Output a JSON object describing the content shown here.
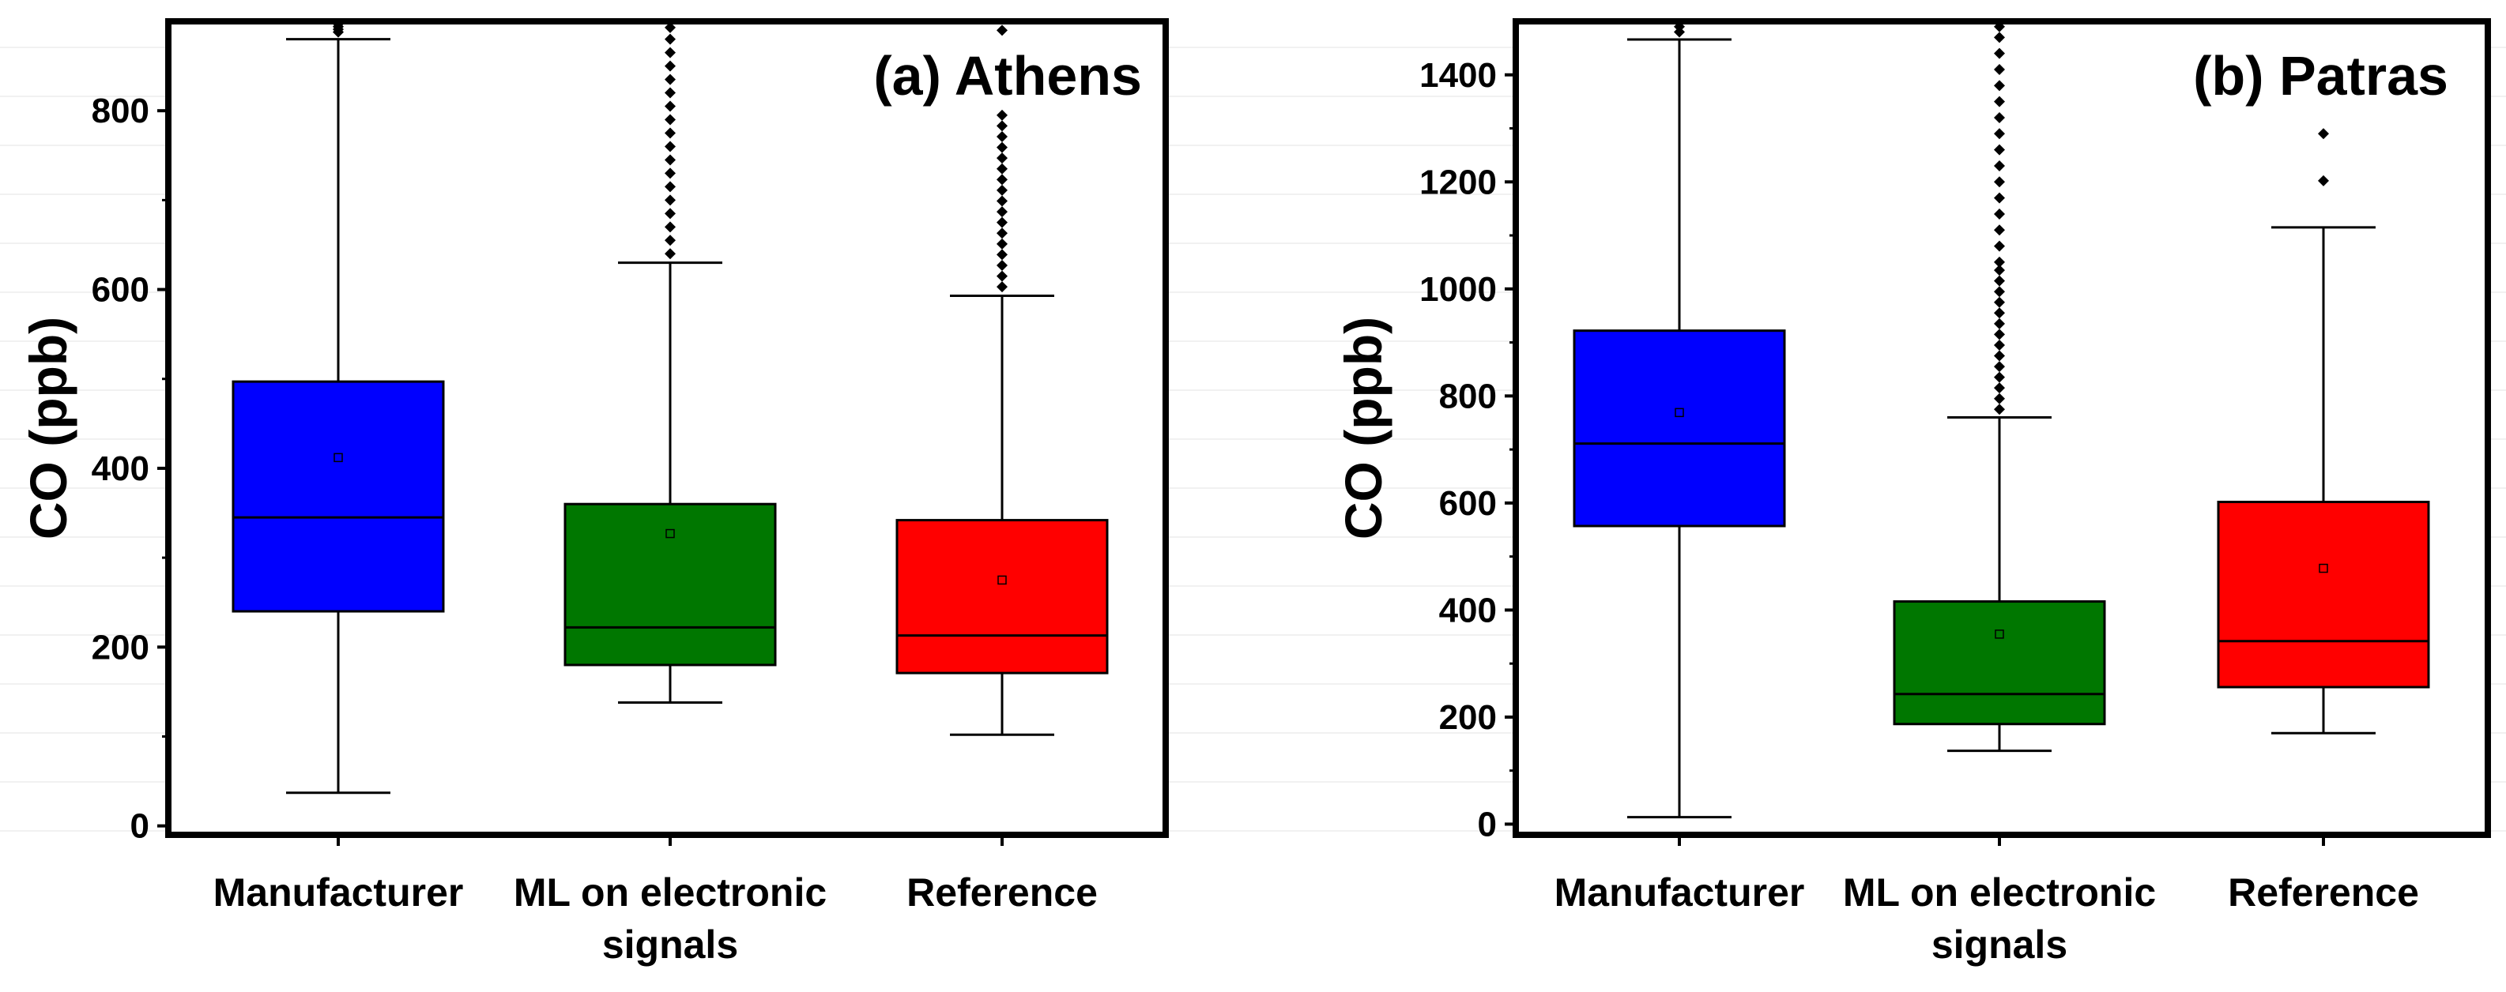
{
  "chart_data": [
    {
      "type": "box",
      "title": "(a) Athens",
      "xlabel": "",
      "ylabel": "CO (ppb)",
      "ylim": [
        -10,
        900
      ],
      "yticks": [
        0,
        200,
        400,
        600,
        800
      ],
      "categories": [
        "Manufacturer",
        "ML on electronic|signals",
        "Reference"
      ],
      "boxes": [
        {
          "name": "Manufacturer",
          "color": "#0000ff",
          "whisker_low": 37,
          "q1": 240,
          "median": 345,
          "q3": 497,
          "whisker_high": 880,
          "mean": 412,
          "outliers": [
            888,
            891,
            894,
            897
          ]
        },
        {
          "name": "ML on electronic signals",
          "color": "#007700",
          "whisker_low": 138,
          "q1": 180,
          "median": 222,
          "q3": 360,
          "whisker_high": 630,
          "mean": 327,
          "outliers": [
            640,
            655,
            670,
            685,
            700,
            715,
            730,
            745,
            760,
            775,
            790,
            805,
            820,
            835,
            850,
            865,
            880,
            893
          ]
        },
        {
          "name": "Reference",
          "color": "#ff0000",
          "whisker_low": 102,
          "q1": 171,
          "median": 213,
          "q3": 342,
          "whisker_high": 593,
          "mean": 275,
          "outliers": [
            603,
            615,
            627,
            639,
            651,
            663,
            675,
            687,
            699,
            711,
            723,
            735,
            747,
            759,
            771,
            783,
            795,
            890
          ]
        }
      ]
    },
    {
      "type": "box",
      "title": "(b) Patras",
      "xlabel": "",
      "ylabel": "CO (ppb)",
      "ylim": [
        -20,
        1500
      ],
      "yticks": [
        0,
        200,
        400,
        600,
        800,
        1000,
        1200,
        1400
      ],
      "categories": [
        "Manufacturer",
        "ML on electronic|signals",
        "Reference"
      ],
      "boxes": [
        {
          "name": "Manufacturer",
          "color": "#0000ff",
          "whisker_low": 13,
          "q1": 557,
          "median": 711,
          "q3": 922,
          "whisker_high": 1466,
          "mean": 769,
          "outliers": [
            1480,
            1490
          ]
        },
        {
          "name": "ML on electronic signals",
          "color": "#007700",
          "whisker_low": 137,
          "q1": 187,
          "median": 243,
          "q3": 416,
          "whisker_high": 760,
          "mean": 355,
          "outliers": [
            775,
            795,
            815,
            835,
            855,
            875,
            895,
            915,
            935,
            955,
            975,
            995,
            1015,
            1035,
            1050,
            1080,
            1110,
            1140,
            1170,
            1200,
            1230,
            1260,
            1290,
            1320,
            1350,
            1380,
            1410,
            1440,
            1470,
            1490
          ]
        },
        {
          "name": "Reference",
          "color": "#ff0000",
          "whisker_low": 170,
          "q1": 256,
          "median": 342,
          "q3": 602,
          "whisker_high": 1115,
          "mean": 478,
          "outliers": [
            1202,
            1290
          ]
        }
      ]
    }
  ]
}
